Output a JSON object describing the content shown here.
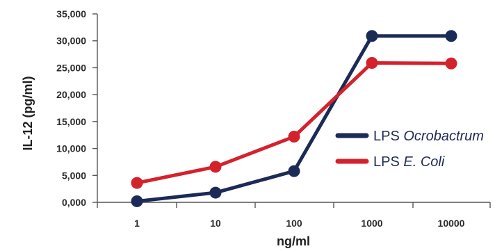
{
  "chart_data": {
    "type": "line",
    "categories": [
      "1",
      "10",
      "100",
      "1000",
      "10000"
    ],
    "series": [
      {
        "name": "LPS Ocrobactrum",
        "name_prefix": "LPS ",
        "name_italic": "Ocrobactrum",
        "color": "#1b2a57",
        "values": [
          200,
          1800,
          5800,
          30900,
          30900
        ]
      },
      {
        "name": "LPS E. Coli",
        "name_prefix": "LPS ",
        "name_italic": "E. Coli",
        "color": "#d4222d",
        "values": [
          3600,
          6600,
          12200,
          25900,
          25800
        ]
      }
    ],
    "xlabel": "ng/ml",
    "ylabel": "IL-12 (pg/ml)",
    "ylim": [
      0,
      35000
    ],
    "yticks": [
      0,
      5000,
      10000,
      15000,
      20000,
      25000,
      30000,
      35000
    ],
    "ytick_labels": [
      "0,000",
      "5,000",
      "10,000",
      "15,000",
      "20,000",
      "25,000",
      "30,000",
      "35,000"
    ],
    "grid": false,
    "legend_position": "right"
  }
}
